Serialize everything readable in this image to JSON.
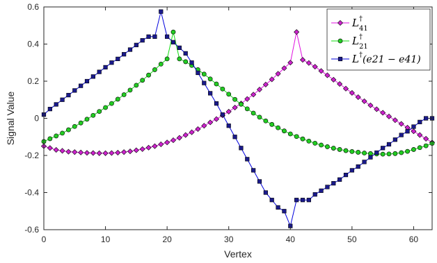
{
  "chart_data": {
    "type": "line",
    "xlabel": "Vertex",
    "ylabel": "Signal Value",
    "xlim": [
      0,
      63
    ],
    "ylim": [
      -0.6,
      0.6
    ],
    "xticks": [
      0,
      10,
      20,
      30,
      40,
      50,
      60
    ],
    "yticks": [
      -0.6,
      -0.4,
      -0.2,
      0,
      0.2,
      0.4,
      0.6
    ],
    "xtick_labels": [
      "0",
      "10",
      "20",
      "30",
      "40",
      "50",
      "60"
    ],
    "ytick_labels": [
      "-0.6",
      "-0.4",
      "-0.2",
      "0",
      "0.2",
      "0.4",
      "0.6"
    ],
    "grid": false,
    "legend_position": "top-right",
    "series": [
      {
        "name": "L†41",
        "legend": {
          "base": "L",
          "sup": "†",
          "sub": "41"
        },
        "marker": "diamond",
        "color": "#cc22cc",
        "line_color": "#e011e0",
        "values": [
          -0.15,
          -0.16,
          -0.17,
          -0.175,
          -0.18,
          -0.182,
          -0.184,
          -0.186,
          -0.187,
          -0.188,
          -0.188,
          -0.187,
          -0.185,
          -0.182,
          -0.178,
          -0.172,
          -0.166,
          -0.158,
          -0.15,
          -0.14,
          -0.13,
          -0.118,
          -0.105,
          -0.09,
          -0.075,
          -0.058,
          -0.04,
          -0.022,
          -0.004,
          0.016,
          0.036,
          0.058,
          0.08,
          0.104,
          0.128,
          0.155,
          0.182,
          0.21,
          0.24,
          0.27,
          0.3,
          0.465,
          0.315,
          0.298,
          0.278,
          0.255,
          0.232,
          0.208,
          0.185,
          0.16,
          0.137,
          0.114,
          0.092,
          0.07,
          0.049,
          0.03,
          0.01,
          -0.01,
          -0.03,
          -0.05,
          -0.07,
          -0.09,
          -0.11,
          -0.13
        ]
      },
      {
        "name": "L†21",
        "legend": {
          "base": "L",
          "sup": "†",
          "sub": "21"
        },
        "marker": "circle",
        "color": "#22cc22",
        "line_color": "#11dd11",
        "values": [
          -0.125,
          -0.11,
          -0.095,
          -0.08,
          -0.062,
          -0.044,
          -0.025,
          -0.005,
          0.016,
          0.037,
          0.058,
          0.08,
          0.103,
          0.127,
          0.152,
          0.178,
          0.205,
          0.233,
          0.262,
          0.292,
          0.32,
          0.465,
          0.32,
          0.305,
          0.285,
          0.262,
          0.238,
          0.212,
          0.185,
          0.158,
          0.13,
          0.102,
          0.076,
          0.051,
          0.028,
          0.006,
          -0.014,
          -0.033,
          -0.051,
          -0.068,
          -0.084,
          -0.098,
          -0.111,
          -0.123,
          -0.134,
          -0.144,
          -0.153,
          -0.161,
          -0.168,
          -0.174,
          -0.179,
          -0.183,
          -0.187,
          -0.19,
          -0.192,
          -0.193,
          -0.192,
          -0.19,
          -0.185,
          -0.178,
          -0.168,
          -0.158,
          -0.148,
          -0.135
        ]
      },
      {
        "name": "L†(e21 − e41)",
        "legend": {
          "base": "L",
          "sup": "†",
          "args": "(e21 − e41)"
        },
        "marker": "square",
        "color": "#1a1a8c",
        "line_color": "#0000dd",
        "values": [
          0.02,
          0.05,
          0.075,
          0.1,
          0.125,
          0.15,
          0.175,
          0.2,
          0.225,
          0.25,
          0.275,
          0.3,
          0.32,
          0.345,
          0.37,
          0.395,
          0.42,
          0.44,
          0.44,
          0.575,
          0.44,
          0.41,
          0.38,
          0.35,
          0.3,
          0.245,
          0.19,
          0.135,
          0.08,
          0.02,
          -0.04,
          -0.1,
          -0.16,
          -0.22,
          -0.28,
          -0.34,
          -0.4,
          -0.44,
          -0.48,
          -0.5,
          -0.58,
          -0.44,
          -0.44,
          -0.44,
          -0.41,
          -0.39,
          -0.37,
          -0.35,
          -0.33,
          -0.305,
          -0.28,
          -0.26,
          -0.235,
          -0.21,
          -0.185,
          -0.16,
          -0.14,
          -0.115,
          -0.09,
          -0.07,
          -0.045,
          -0.02,
          0.0,
          0.0
        ]
      }
    ]
  }
}
